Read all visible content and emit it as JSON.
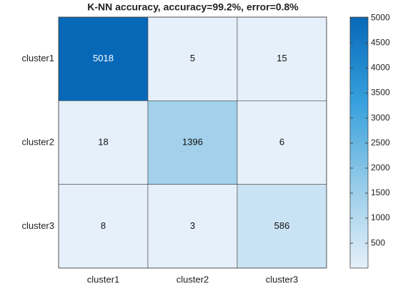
{
  "chart_data": {
    "type": "heatmap",
    "title": "K-NN accuracy, accuracy=99.2%, error=0.8%",
    "x_categories": [
      "cluster1",
      "cluster2",
      "cluster3"
    ],
    "y_categories": [
      "cluster1",
      "cluster2",
      "cluster3"
    ],
    "values": [
      [
        5018,
        5,
        15
      ],
      [
        18,
        1396,
        6
      ],
      [
        8,
        3,
        586
      ]
    ],
    "clim": [
      3,
      5018
    ],
    "colorbar_ticks": [
      500,
      1000,
      1500,
      2000,
      2500,
      3000,
      3500,
      4000,
      4500,
      5000
    ],
    "colormap": [
      "#e6f0fa",
      "#95cbe8",
      "#35a0dd",
      "#0768b8"
    ]
  }
}
